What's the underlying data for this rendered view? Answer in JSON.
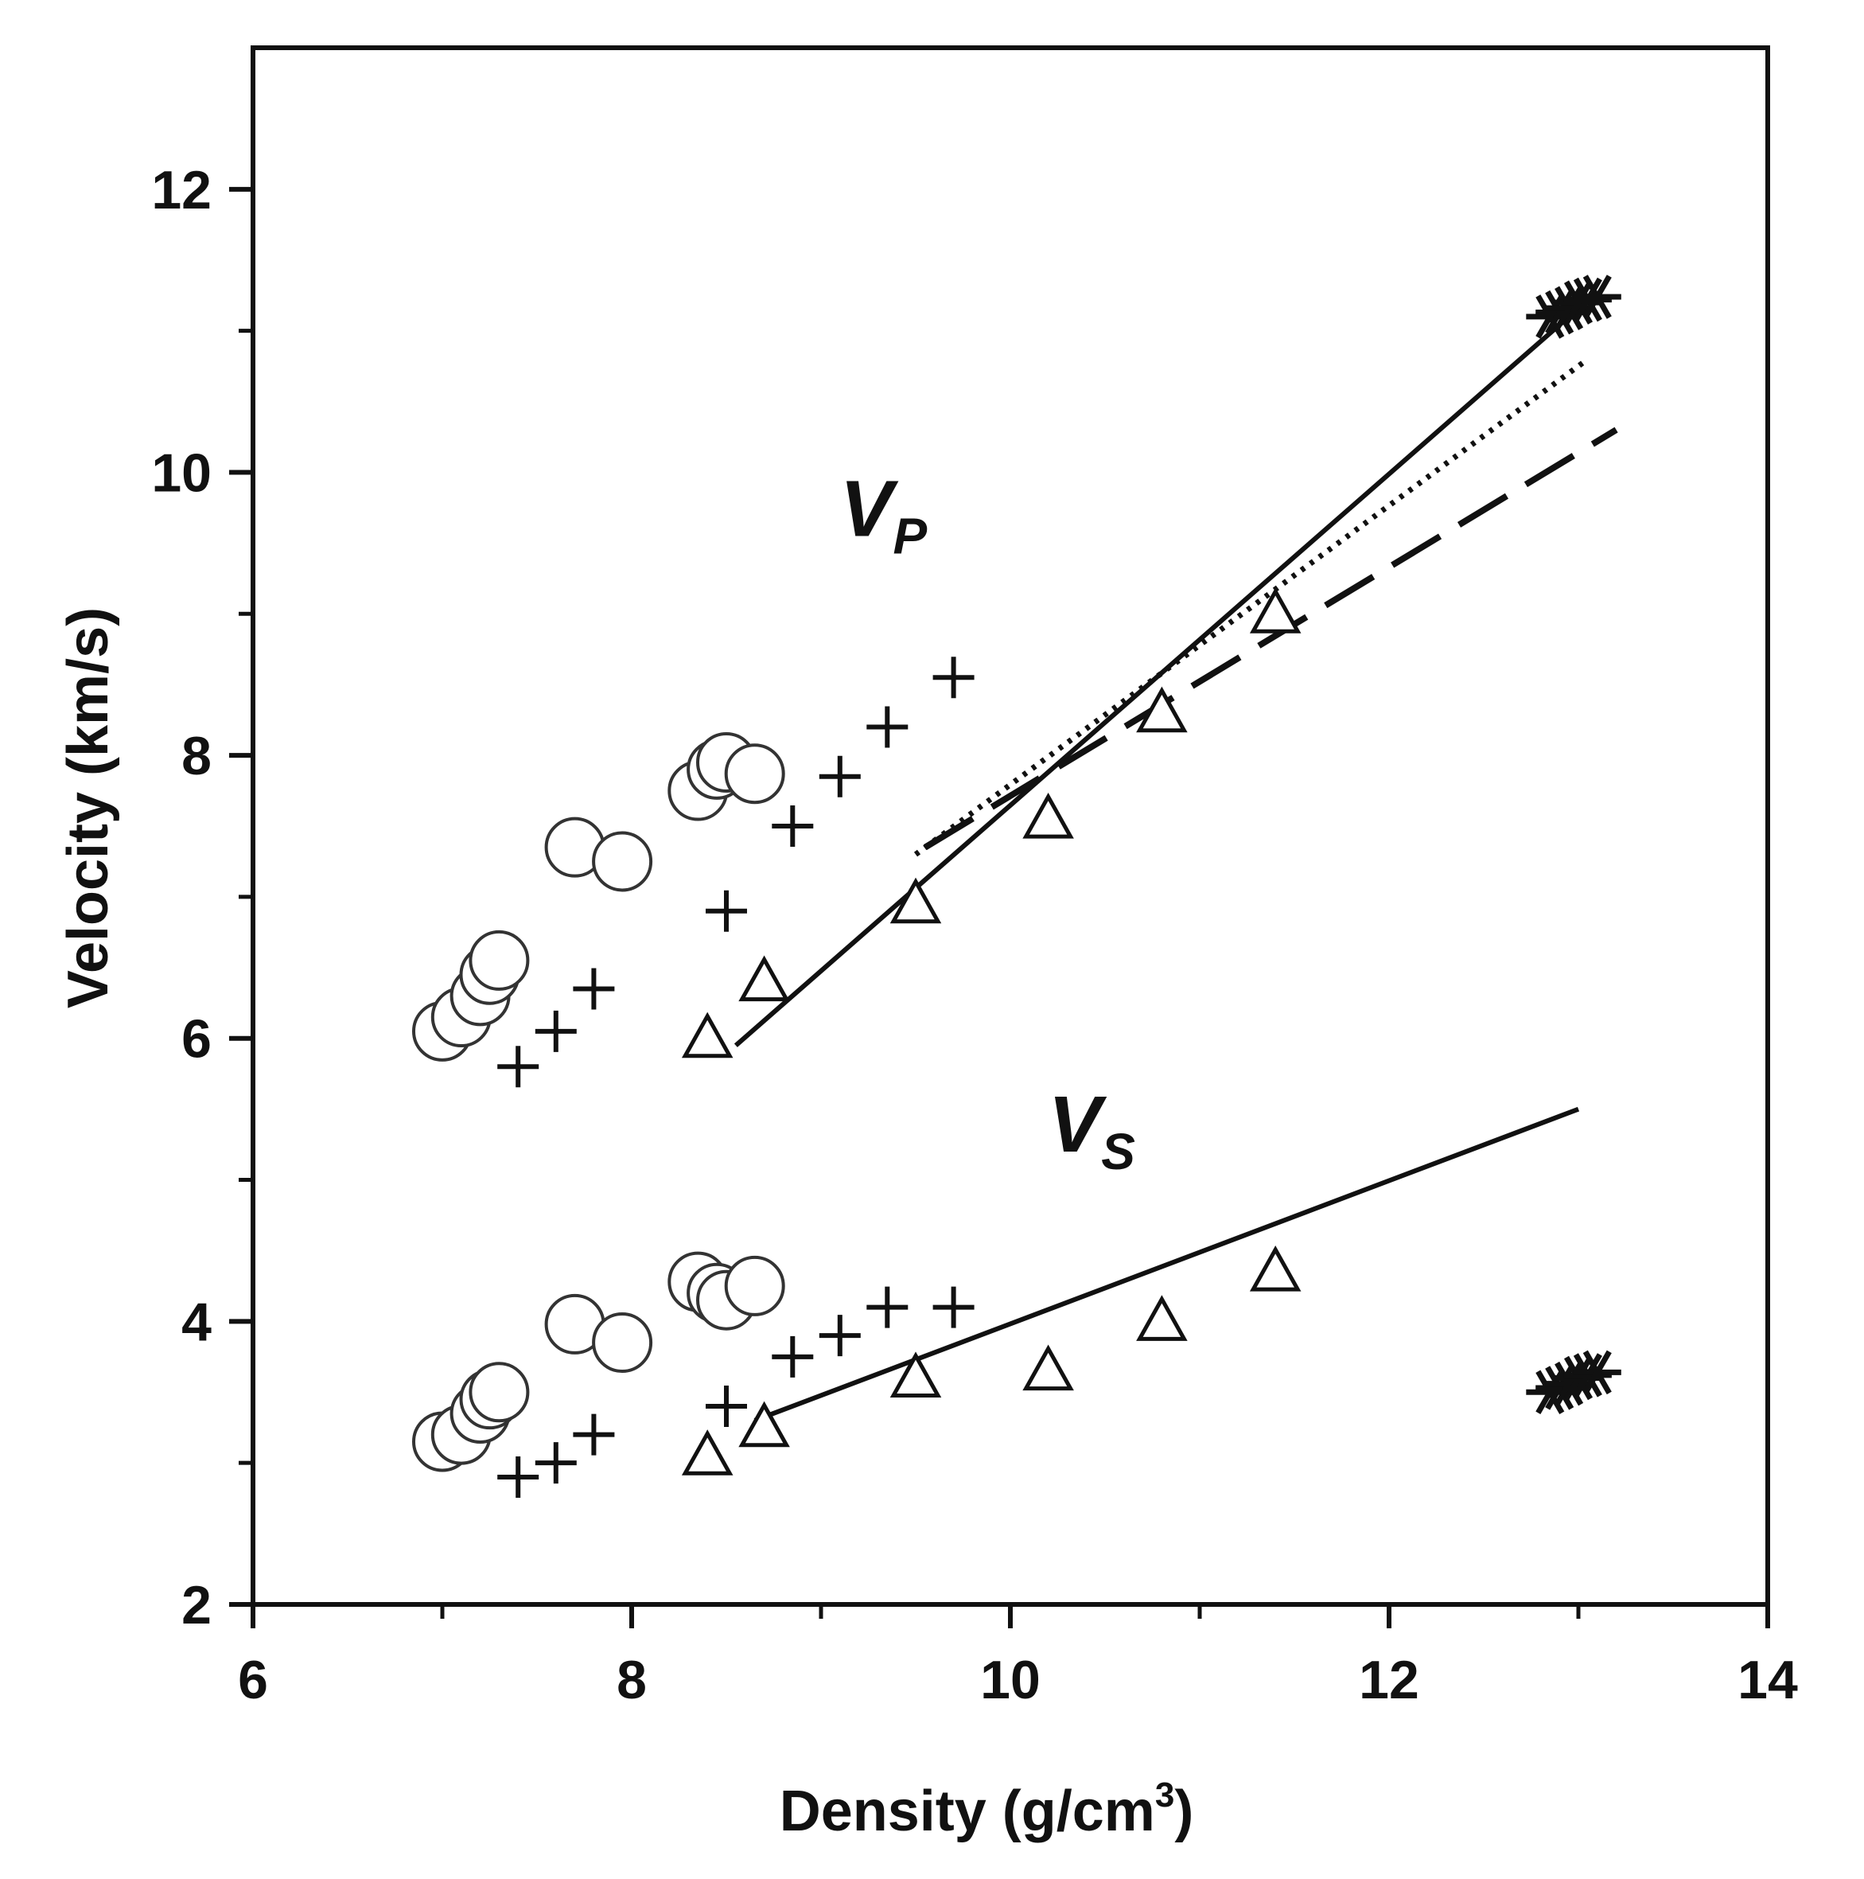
{
  "chart_data": {
    "type": "scatter",
    "xlabel": "Density (g/cm",
    "xlabel_sup": "3",
    "xlabel_close": ")",
    "ylabel": "Velocity (km/s)",
    "xlim": [
      6,
      14
    ],
    "ylim": [
      2,
      13
    ],
    "x_ticks": [
      6,
      8,
      10,
      12,
      14
    ],
    "x_minor_ticks": [
      7,
      9,
      11,
      13
    ],
    "y_ticks": [
      2,
      4,
      6,
      8,
      10,
      12
    ],
    "y_minor_ticks": [
      3,
      5,
      7,
      9,
      11
    ],
    "grid": false,
    "colors": {
      "ink": "#111111",
      "marker": "#333333",
      "background": "#ffffff"
    },
    "annotations": [
      {
        "id": "vp",
        "main": "V",
        "sub": "P",
        "x": 9.1,
        "y": 9.55
      },
      {
        "id": "vs",
        "main": "V",
        "sub": "S",
        "x": 10.2,
        "y": 5.2
      }
    ],
    "series": [
      {
        "name": "circles-vp",
        "marker": "circle",
        "points": [
          [
            7.0,
            6.05
          ],
          [
            7.1,
            6.15
          ],
          [
            7.2,
            6.3
          ],
          [
            7.25,
            6.45
          ],
          [
            7.3,
            6.55
          ],
          [
            7.7,
            7.35
          ],
          [
            7.95,
            7.25
          ],
          [
            8.35,
            7.75
          ],
          [
            8.45,
            7.9
          ],
          [
            8.5,
            7.95
          ],
          [
            8.65,
            7.87
          ]
        ]
      },
      {
        "name": "circles-vs",
        "marker": "circle",
        "points": [
          [
            7.0,
            3.15
          ],
          [
            7.1,
            3.2
          ],
          [
            7.2,
            3.35
          ],
          [
            7.25,
            3.45
          ],
          [
            7.3,
            3.5
          ],
          [
            7.7,
            3.98
          ],
          [
            7.95,
            3.85
          ],
          [
            8.35,
            4.28
          ],
          [
            8.45,
            4.2
          ],
          [
            8.5,
            4.15
          ],
          [
            8.65,
            4.25
          ]
        ]
      },
      {
        "name": "plus-vp",
        "marker": "plus",
        "points": [
          [
            7.4,
            5.8
          ],
          [
            7.6,
            6.05
          ],
          [
            7.8,
            6.35
          ],
          [
            8.5,
            6.9
          ],
          [
            8.85,
            7.5
          ],
          [
            9.1,
            7.85
          ],
          [
            9.35,
            8.2
          ],
          [
            9.7,
            8.55
          ]
        ]
      },
      {
        "name": "plus-vs",
        "marker": "plus",
        "points": [
          [
            7.4,
            2.9
          ],
          [
            7.6,
            3.0
          ],
          [
            7.8,
            3.2
          ],
          [
            8.5,
            3.4
          ],
          [
            8.85,
            3.75
          ],
          [
            9.1,
            3.9
          ],
          [
            9.35,
            4.1
          ],
          [
            9.7,
            4.1
          ]
        ]
      },
      {
        "name": "triangles-vp",
        "marker": "triangle",
        "points": [
          [
            8.4,
            6.0
          ],
          [
            8.7,
            6.4
          ],
          [
            9.5,
            6.95
          ],
          [
            10.2,
            7.55
          ],
          [
            10.8,
            8.3
          ],
          [
            11.4,
            9.0
          ]
        ]
      },
      {
        "name": "triangles-vs",
        "marker": "triangle",
        "points": [
          [
            8.4,
            3.05
          ],
          [
            8.7,
            3.25
          ],
          [
            9.5,
            3.6
          ],
          [
            10.2,
            3.65
          ],
          [
            10.8,
            4.0
          ],
          [
            11.4,
            4.35
          ]
        ]
      },
      {
        "name": "stars-vp",
        "marker": "star",
        "points": [
          [
            12.85,
            11.1
          ],
          [
            12.9,
            11.13
          ],
          [
            12.95,
            11.16
          ],
          [
            13.0,
            11.2
          ],
          [
            13.05,
            11.22
          ],
          [
            13.1,
            11.24
          ]
        ]
      },
      {
        "name": "stars-vs",
        "marker": "star",
        "points": [
          [
            12.85,
            3.5
          ],
          [
            12.9,
            3.53
          ],
          [
            12.95,
            3.56
          ],
          [
            13.0,
            3.6
          ],
          [
            13.05,
            3.62
          ],
          [
            13.1,
            3.64
          ]
        ]
      }
    ],
    "lines": [
      {
        "name": "vp-solid-fit",
        "style": "solid",
        "points": [
          [
            8.55,
            5.95
          ],
          [
            12.95,
            11.1
          ]
        ]
      },
      {
        "name": "vp-dotted-fit",
        "style": "dotted",
        "points": [
          [
            9.5,
            7.3
          ],
          [
            13.05,
            10.8
          ]
        ]
      },
      {
        "name": "vp-dashed-fit",
        "style": "dashed",
        "points": [
          [
            9.55,
            7.35
          ],
          [
            13.2,
            10.3
          ]
        ]
      },
      {
        "name": "vs-solid-fit",
        "style": "solid",
        "points": [
          [
            8.65,
            3.3
          ],
          [
            13.0,
            5.5
          ]
        ]
      }
    ]
  }
}
